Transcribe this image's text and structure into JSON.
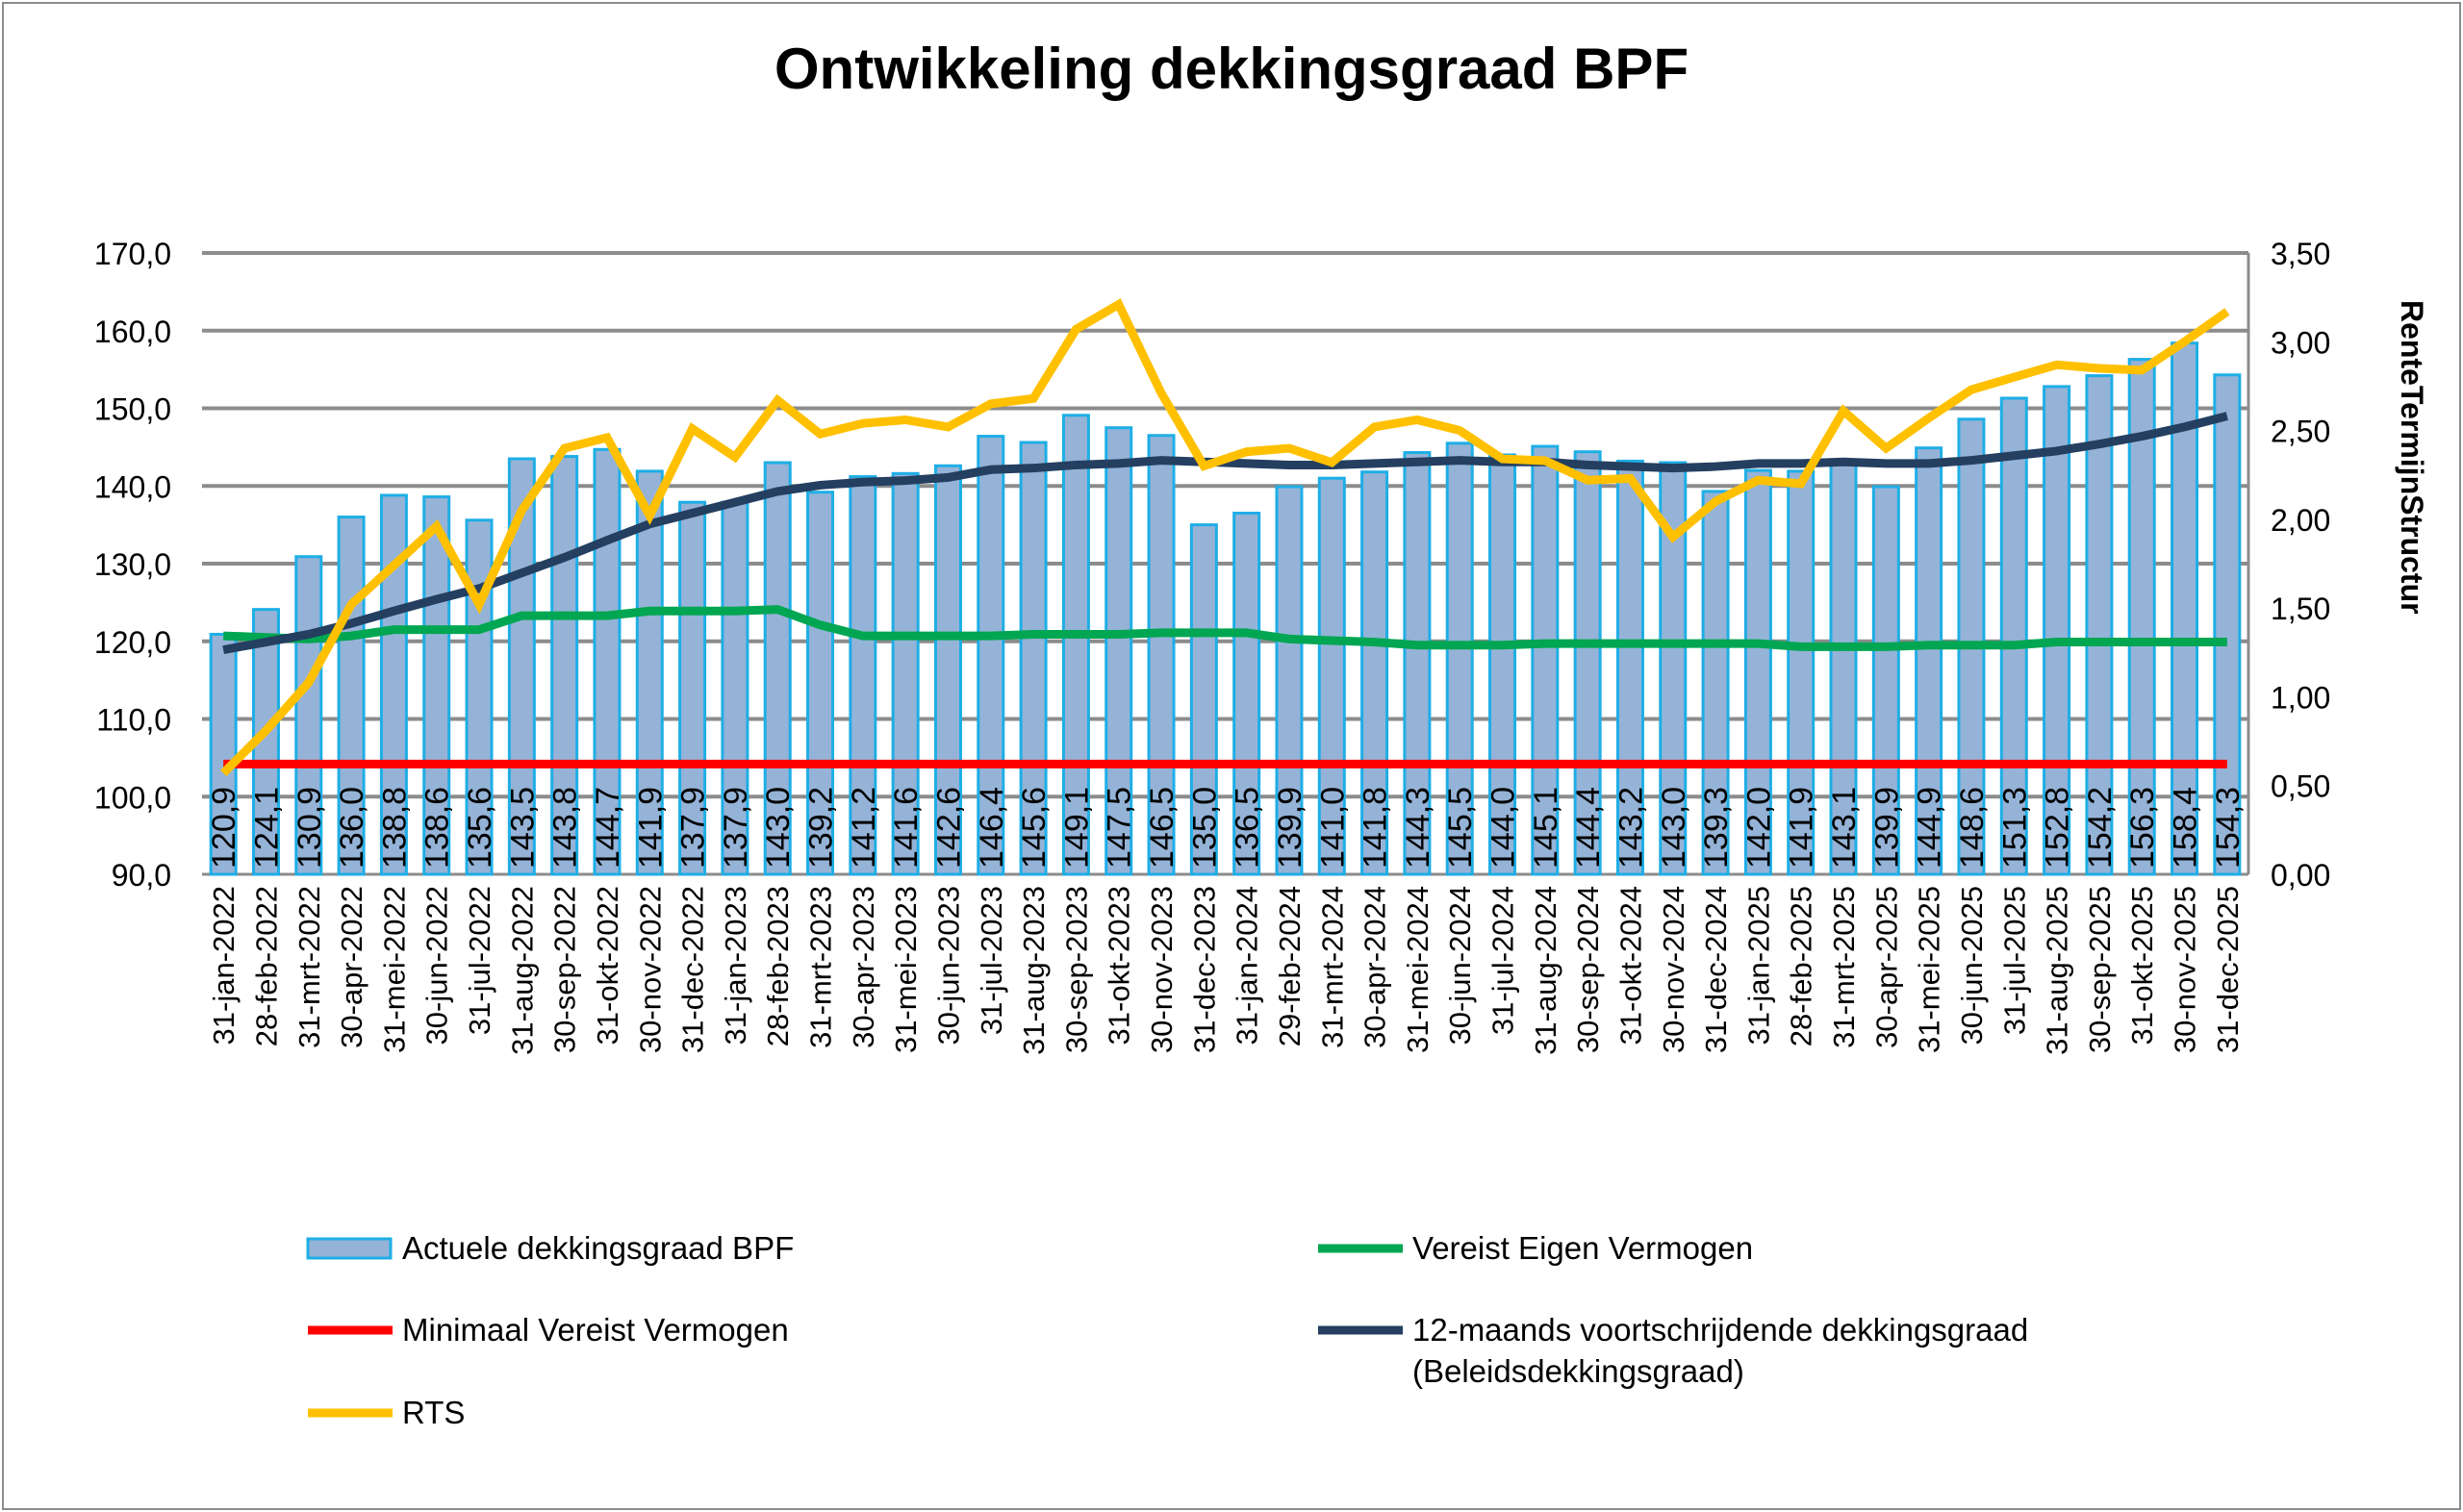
{
  "chart_data": {
    "type": "bar",
    "title": "Ontwikkeling dekkingsgraad BPF",
    "ylabel": "",
    "y2label": "RenteTermijnStructur",
    "ylim": [
      90,
      170
    ],
    "y2lim": [
      0,
      3.5
    ],
    "yticks": [
      "90,0",
      "100,0",
      "110,0",
      "120,0",
      "130,0",
      "140,0",
      "150,0",
      "160,0",
      "170,0"
    ],
    "y2ticks": [
      "0,00",
      "0,50",
      "1,00",
      "1,50",
      "2,00",
      "2,50",
      "3,00",
      "3,50"
    ],
    "grid": true,
    "legend_position": "bottom",
    "categories": [
      "31-jan-2022",
      "28-feb-2022",
      "31-mrt-2022",
      "30-apr-2022",
      "31-mei-2022",
      "30-jun-2022",
      "31-jul-2022",
      "31-aug-2022",
      "30-sep-2022",
      "31-okt-2022",
      "30-nov-2022",
      "31-dec-2022",
      "31-jan-2023",
      "28-feb-2023",
      "31-mrt-2023",
      "30-apr-2023",
      "31-mei-2023",
      "30-jun-2023",
      "31-jul-2023",
      "31-aug-2023",
      "30-sep-2023",
      "31-okt-2023",
      "30-nov-2023",
      "31-dec-2023",
      "31-jan-2024",
      "29-feb-2024",
      "31-mrt-2024",
      "30-apr-2024",
      "31-mei-2024",
      "30-jun-2024",
      "31-jul-2024",
      "31-aug-2024",
      "30-sep-2024",
      "31-okt-2024",
      "30-nov-2024",
      "31-dec-2024",
      "31-jan-2025",
      "28-feb-2025",
      "31-mrt-2025",
      "30-apr-2025",
      "31-mei-2025",
      "30-jun-2025",
      "31-jul-2025",
      "31-aug-2025",
      "30-sep-2025",
      "31-okt-2025",
      "30-nov-2025",
      "31-dec-2025"
    ],
    "series": [
      {
        "name": "Actuele dekkingsgraad BPF",
        "kind": "bar",
        "axis": "left",
        "color": "#95b3d7",
        "edge": "#1eaee6",
        "values": [
          120.9,
          124.1,
          130.9,
          136.0,
          138.8,
          138.6,
          135.6,
          143.5,
          143.8,
          144.7,
          141.9,
          137.9,
          137.9,
          143.0,
          139.2,
          141.2,
          141.6,
          142.6,
          146.4,
          145.6,
          149.1,
          147.5,
          146.5,
          135.0,
          136.5,
          139.9,
          141.0,
          141.8,
          144.3,
          145.5,
          144.0,
          145.1,
          144.4,
          143.2,
          143.0,
          139.3,
          142.0,
          141.9,
          143.1,
          139.9,
          144.9,
          148.6,
          151.3,
          152.8,
          154.2,
          156.3,
          158.4,
          154.3
        ]
      },
      {
        "name": "Vereist Eigen Vermogen",
        "kind": "line",
        "axis": "left",
        "color": "#00a651",
        "values": [
          120.7,
          120.5,
          120.3,
          120.7,
          121.5,
          121.5,
          121.5,
          123.3,
          123.3,
          123.3,
          123.9,
          123.9,
          123.9,
          124.1,
          122.1,
          120.7,
          120.7,
          120.7,
          120.7,
          120.9,
          120.9,
          120.9,
          121.1,
          121.1,
          121.1,
          120.3,
          120.1,
          119.9,
          119.5,
          119.5,
          119.5,
          119.7,
          119.7,
          119.7,
          119.7,
          119.7,
          119.7,
          119.3,
          119.3,
          119.3,
          119.5,
          119.5,
          119.5,
          119.9,
          119.9,
          119.9,
          119.9,
          119.9
        ]
      },
      {
        "name": "Minimaal Vereist Vermogen",
        "kind": "line",
        "axis": "left",
        "color": "#ff0000",
        "values": [
          104.2,
          104.2,
          104.2,
          104.2,
          104.2,
          104.2,
          104.2,
          104.2,
          104.2,
          104.2,
          104.2,
          104.2,
          104.2,
          104.2,
          104.2,
          104.2,
          104.2,
          104.2,
          104.2,
          104.2,
          104.2,
          104.2,
          104.2,
          104.2,
          104.2,
          104.2,
          104.2,
          104.2,
          104.2,
          104.2,
          104.2,
          104.2,
          104.2,
          104.2,
          104.2,
          104.2,
          104.2,
          104.2,
          104.2,
          104.2,
          104.2,
          104.2,
          104.2,
          104.2,
          104.2,
          104.2,
          104.2,
          104.2
        ]
      },
      {
        "name": "12-maands voortschrijdende dekkingsgraad (Beleidsdekkingsgraad)",
        "kind": "line",
        "axis": "left",
        "color": "#243f60",
        "values": [
          118.9,
          119.9,
          120.9,
          122.3,
          123.9,
          125.4,
          126.8,
          128.8,
          130.8,
          133.0,
          135.1,
          136.5,
          137.9,
          139.3,
          140.1,
          140.5,
          140.7,
          141.1,
          142.1,
          142.3,
          142.7,
          142.9,
          143.3,
          143.1,
          142.9,
          142.7,
          142.7,
          142.9,
          143.1,
          143.3,
          143.1,
          143.1,
          142.7,
          142.5,
          142.3,
          142.5,
          142.9,
          142.9,
          143.1,
          142.9,
          142.9,
          143.3,
          143.9,
          144.5,
          145.4,
          146.4,
          147.6,
          149.0
        ]
      },
      {
        "name": "RTS",
        "kind": "line",
        "axis": "right",
        "color": "#ffc000",
        "values": [
          0.57,
          0.81,
          1.08,
          1.52,
          1.74,
          1.96,
          1.52,
          2.05,
          2.4,
          2.46,
          2.02,
          2.51,
          2.35,
          2.67,
          2.48,
          2.54,
          2.56,
          2.52,
          2.65,
          2.68,
          3.07,
          3.21,
          2.71,
          2.3,
          2.38,
          2.4,
          2.32,
          2.52,
          2.56,
          2.5,
          2.34,
          2.33,
          2.22,
          2.23,
          1.9,
          2.1,
          2.22,
          2.2,
          2.61,
          2.4,
          2.57,
          2.73,
          2.8,
          2.87,
          2.85,
          2.84,
          3.0,
          3.17
        ]
      }
    ],
    "legend": [
      {
        "label": "Actuele dekkingsgraad BPF",
        "series": 0
      },
      {
        "label": "Vereist Eigen Vermogen",
        "series": 1
      },
      {
        "label": "Minimaal Vereist Vermogen",
        "series": 2
      },
      {
        "label": "12-maands voortschrijdende dekkingsgraad",
        "label2": "(Beleidsdekkingsgraad)",
        "series": 3
      },
      {
        "label": "RTS",
        "series": 4
      }
    ]
  }
}
